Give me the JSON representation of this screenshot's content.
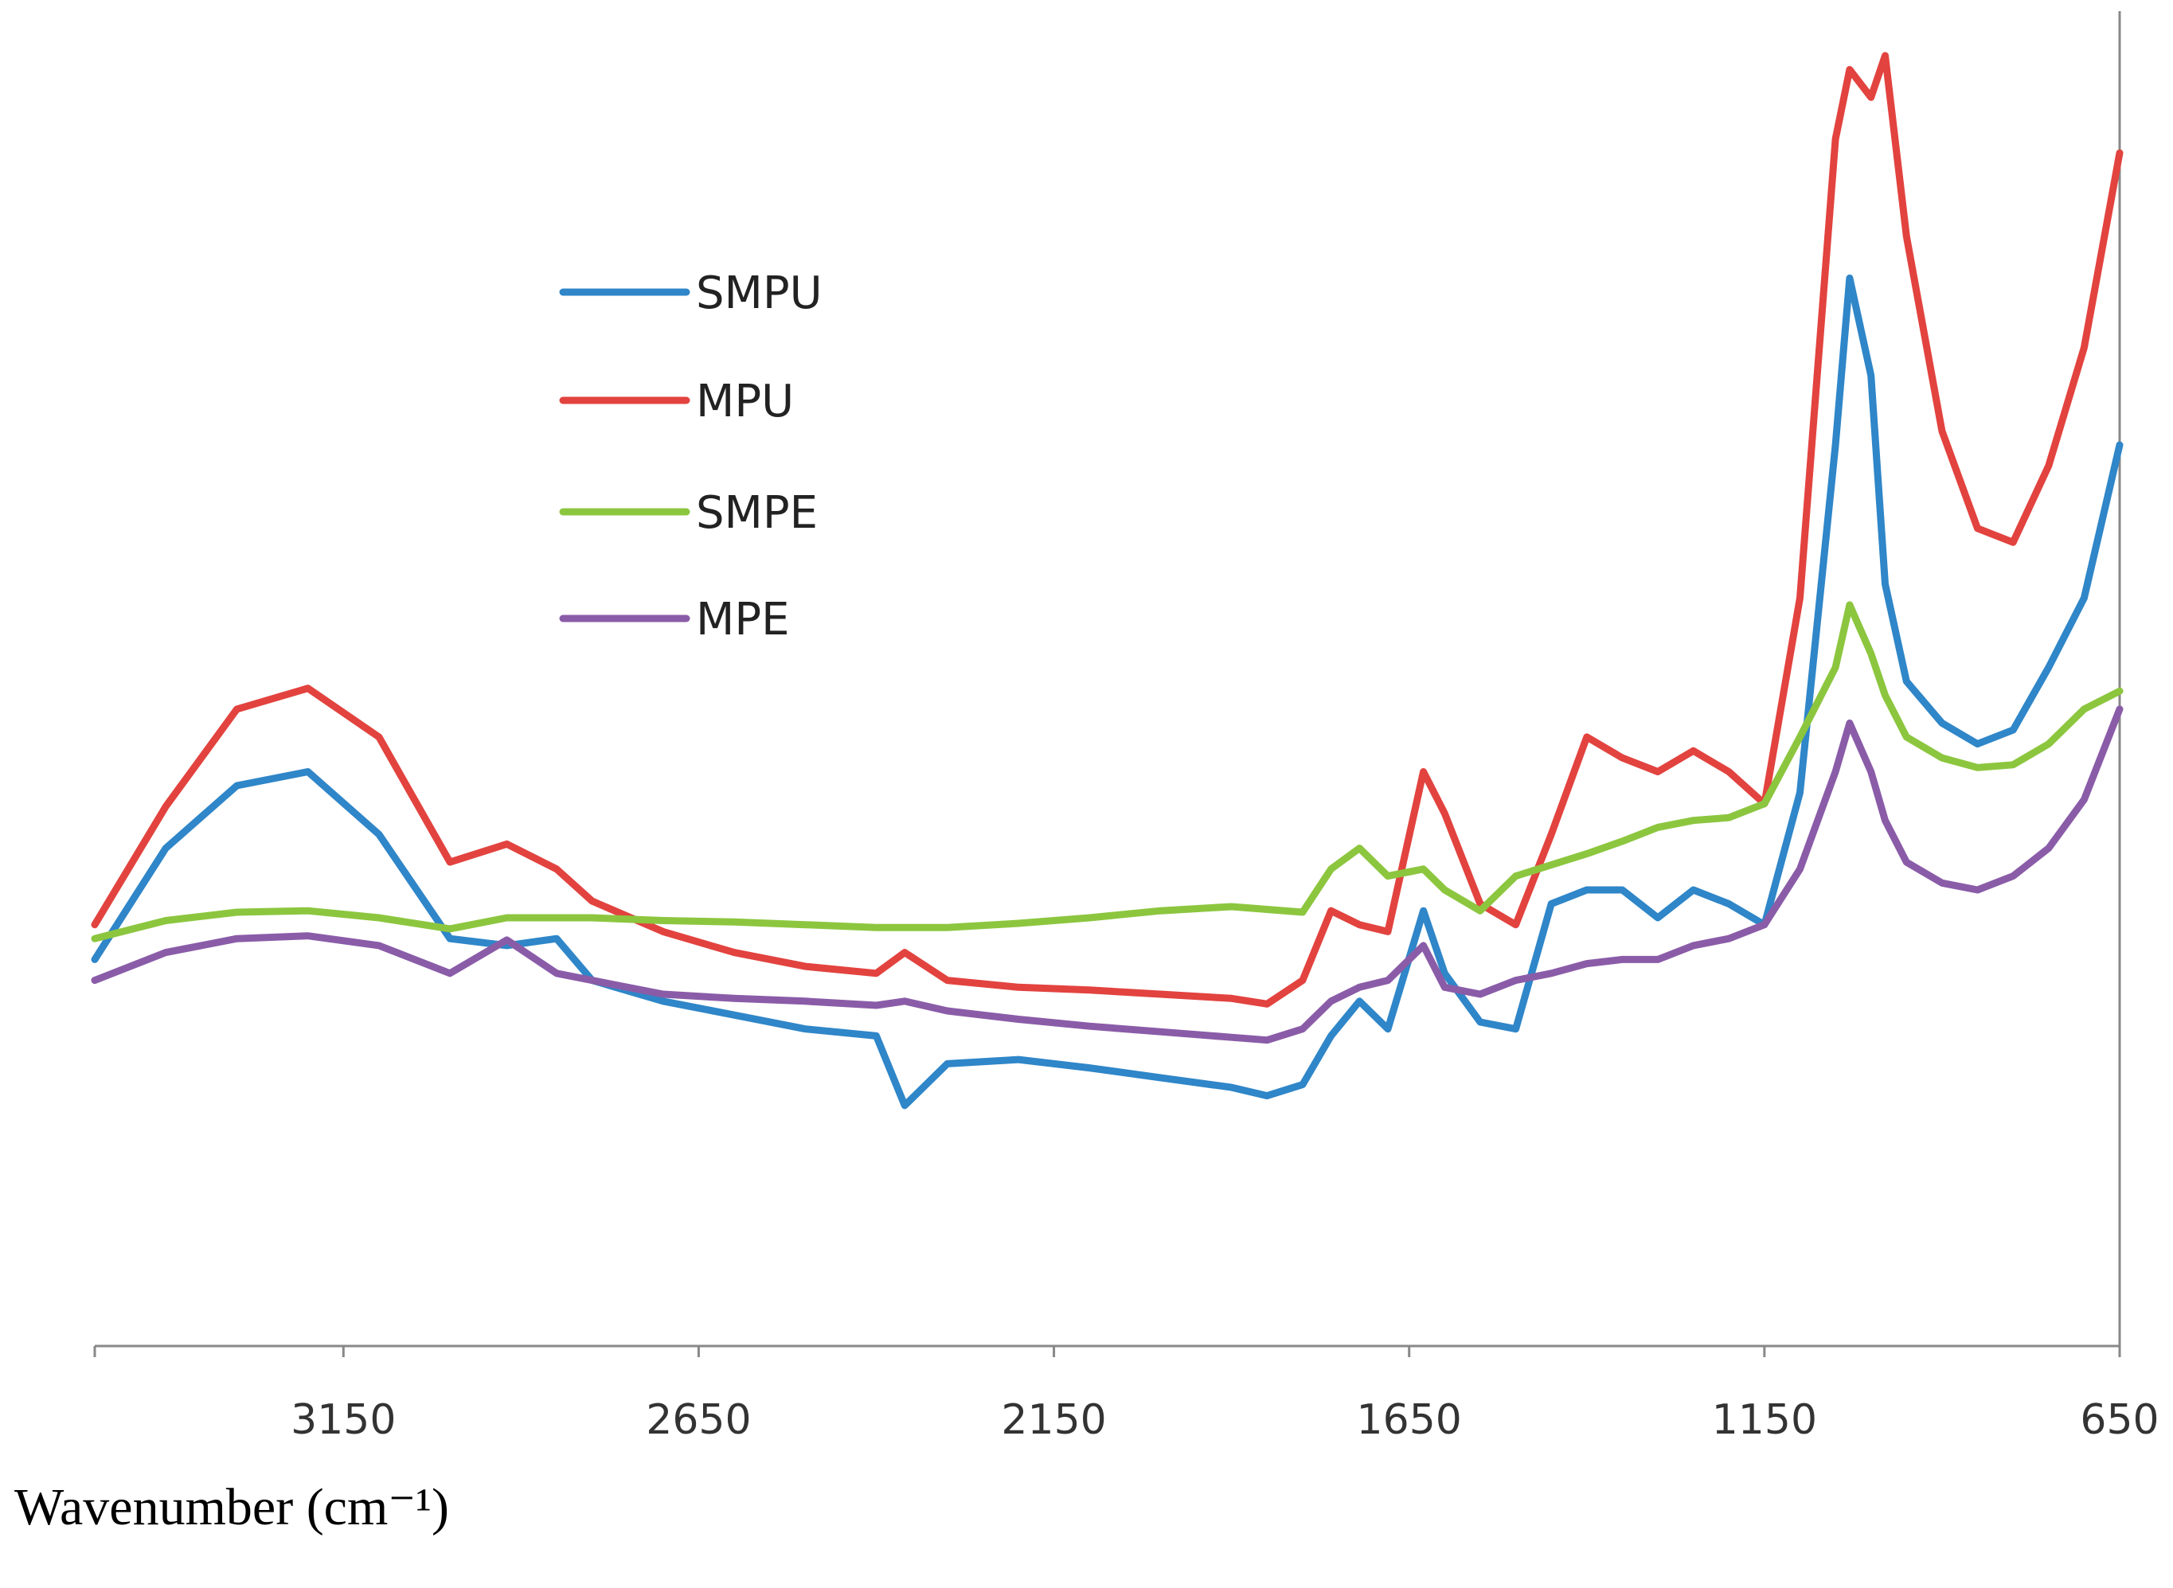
{
  "chart_data": {
    "type": "line",
    "x_label": "Wavenumber (cm⁻¹)",
    "x": [
      3500,
      3400,
      3300,
      3200,
      3100,
      3000,
      2920,
      2850,
      2800,
      2700,
      2600,
      2500,
      2400,
      2360,
      2300,
      2200,
      2100,
      2000,
      1900,
      1850,
      1800,
      1760,
      1720,
      1680,
      1630,
      1600,
      1550,
      1500,
      1450,
      1400,
      1350,
      1300,
      1250,
      1200,
      1150,
      1100,
      1050,
      1030,
      1000,
      980,
      950,
      900,
      850,
      800,
      750,
      700,
      650
    ],
    "xlim": [
      3500,
      650
    ],
    "xticks": [
      3150,
      2650,
      2150,
      1650,
      1150,
      650
    ],
    "ylim": [
      0,
      960
    ],
    "series": [
      {
        "name": "SMPU",
        "color": "#2f86c8",
        "values": [
          278,
          358,
          403,
          413,
          368,
          293,
          288,
          293,
          263,
          248,
          238,
          228,
          223,
          173,
          203,
          206,
          200,
          193,
          186,
          180,
          188,
          223,
          248,
          228,
          313,
          268,
          233,
          228,
          318,
          328,
          328,
          308,
          328,
          318,
          303,
          398,
          648,
          768,
          698,
          548,
          478,
          448,
          433,
          443,
          488,
          538,
          648
        ]
      },
      {
        "name": "MPU",
        "color": "#e2433f",
        "values": [
          303,
          388,
          458,
          473,
          438,
          348,
          361,
          343,
          320,
          298,
          283,
          273,
          268,
          283,
          263,
          258,
          256,
          253,
          250,
          246,
          263,
          313,
          303,
          298,
          413,
          383,
          318,
          303,
          368,
          438,
          423,
          413,
          428,
          413,
          390,
          538,
          868,
          918,
          898,
          928,
          798,
          658,
          588,
          578,
          633,
          718,
          858
        ]
      },
      {
        "name": "SMPE",
        "color": "#8cc63f",
        "values": [
          293,
          306,
          312,
          313,
          308,
          300,
          308,
          308,
          308,
          306,
          305,
          303,
          301,
          301,
          301,
          304,
          308,
          313,
          316,
          314,
          312,
          343,
          358,
          338,
          343,
          328,
          313,
          338,
          346,
          354,
          363,
          373,
          378,
          380,
          390,
          438,
          488,
          533,
          498,
          468,
          438,
          423,
          416,
          418,
          433,
          458,
          471
        ]
      },
      {
        "name": "MPE",
        "color": "#8a5ca8",
        "values": [
          263,
          283,
          293,
          295,
          288,
          268,
          292,
          268,
          263,
          253,
          250,
          248,
          245,
          248,
          241,
          235,
          230,
          226,
          222,
          220,
          228,
          248,
          258,
          263,
          288,
          258,
          253,
          263,
          268,
          275,
          278,
          278,
          288,
          293,
          303,
          343,
          413,
          448,
          413,
          378,
          348,
          333,
          328,
          338,
          358,
          393,
          458
        ]
      }
    ]
  }
}
